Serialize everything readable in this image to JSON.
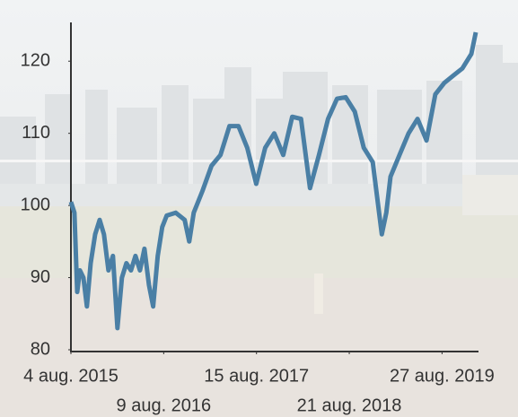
{
  "chart_data": {
    "type": "line",
    "x": [
      "2015-08-04",
      "2015-08-18",
      "2015-08-29",
      "2015-09-09",
      "2015-09-23",
      "2015-10-07",
      "2015-10-22",
      "2015-11-09",
      "2015-11-27",
      "2015-12-14",
      "2016-01-01",
      "2016-01-19",
      "2016-02-06",
      "2016-02-24",
      "2016-03-13",
      "2016-03-31",
      "2016-04-18",
      "2016-05-06",
      "2016-05-24",
      "2016-06-11",
      "2016-06-28",
      "2016-07-16",
      "2016-08-03",
      "2016-08-21",
      "2016-09-26",
      "2016-11-01",
      "2016-11-19",
      "2016-12-07",
      "2017-01-11",
      "2017-02-16",
      "2017-03-24",
      "2017-04-29",
      "2017-06-04",
      "2017-07-09",
      "2017-08-14",
      "2017-09-19",
      "2017-10-25",
      "2017-11-30",
      "2018-01-05",
      "2018-02-09",
      "2018-03-17",
      "2018-04-22",
      "2018-05-28",
      "2018-07-03",
      "2018-08-07",
      "2018-09-12",
      "2018-10-18",
      "2018-11-23",
      "2018-12-29",
      "2019-01-16",
      "2019-02-02",
      "2019-03-10",
      "2019-04-15",
      "2019-05-21",
      "2019-06-26",
      "2019-07-31",
      "2019-09-05",
      "2019-10-11",
      "2019-11-16",
      "2019-12-22",
      "2020-01-09"
    ],
    "series": [
      {
        "color": "#4a7fa5",
        "values": [
          100.5,
          99,
          88,
          91,
          90,
          86,
          92,
          96,
          98,
          96,
          91,
          93,
          83,
          90,
          92,
          91,
          93,
          91,
          94,
          89,
          86,
          93,
          97,
          98.6,
          99,
          98,
          95,
          99,
          102,
          105.5,
          107,
          111,
          111,
          108,
          103,
          108,
          110,
          107,
          112.3,
          112,
          102.4,
          107,
          112,
          114.8,
          115,
          113,
          108,
          106,
          96,
          99,
          104,
          107,
          110,
          112,
          109,
          115.4,
          117,
          118,
          119,
          121,
          124
        ]
      }
    ],
    "xlim": [
      "2015-08-04",
      "2020-01-09"
    ],
    "xticks": [
      {
        "value": "2015-08-04",
        "label": "4 aug. 2015"
      },
      {
        "value": "2016-08-09",
        "label": "9 aug. 2016"
      },
      {
        "value": "2017-08-15",
        "label": "15 aug. 2017"
      },
      {
        "value": "2018-08-21",
        "label": "21 aug. 2018"
      },
      {
        "value": "2019-08-27",
        "label": "27 aug. 2019"
      }
    ],
    "ylim": [
      80,
      125
    ],
    "yticks": [
      80,
      90,
      100,
      110,
      120
    ]
  }
}
